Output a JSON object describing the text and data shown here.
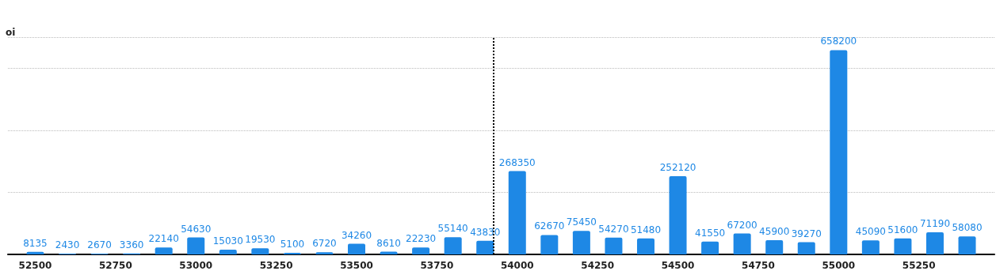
{
  "chart_data": {
    "type": "bar",
    "ylabel": "oi",
    "x": [
      52500,
      52600,
      52700,
      52800,
      52900,
      53000,
      53100,
      53200,
      53300,
      53400,
      53500,
      53600,
      53700,
      53800,
      53900,
      54000,
      54100,
      54200,
      54300,
      54400,
      54500,
      54600,
      54700,
      54800,
      54900,
      55000,
      55100,
      55200,
      55300,
      55400
    ],
    "values": [
      8135,
      2430,
      2670,
      3360,
      22140,
      54630,
      15030,
      19530,
      5100,
      6720,
      34260,
      8610,
      22230,
      55140,
      43830,
      268350,
      62670,
      75450,
      54270,
      51480,
      252120,
      41550,
      67200,
      45900,
      39270,
      658200,
      45090,
      51600,
      71190,
      58080
    ],
    "color": "#1e88e5",
    "data_labels": true,
    "xlim": [
      52415,
      55485
    ],
    "xticks": [
      52500,
      52750,
      53000,
      53250,
      53500,
      53750,
      54000,
      54250,
      54500,
      54750,
      55000,
      55250
    ],
    "ylim": [
      0,
      700000
    ],
    "yticks": [
      {
        "value": 0,
        "label": null
      },
      {
        "value": 200000,
        "label": null
      },
      {
        "value": 400000,
        "label": null
      },
      {
        "value": 600000,
        "label": null
      }
    ],
    "tick_labels": "x",
    "grid": "y",
    "ref_lines": [
      {
        "axis": "x",
        "value": 53925,
        "color": "#000000",
        "line_style": "dotted"
      }
    ]
  }
}
